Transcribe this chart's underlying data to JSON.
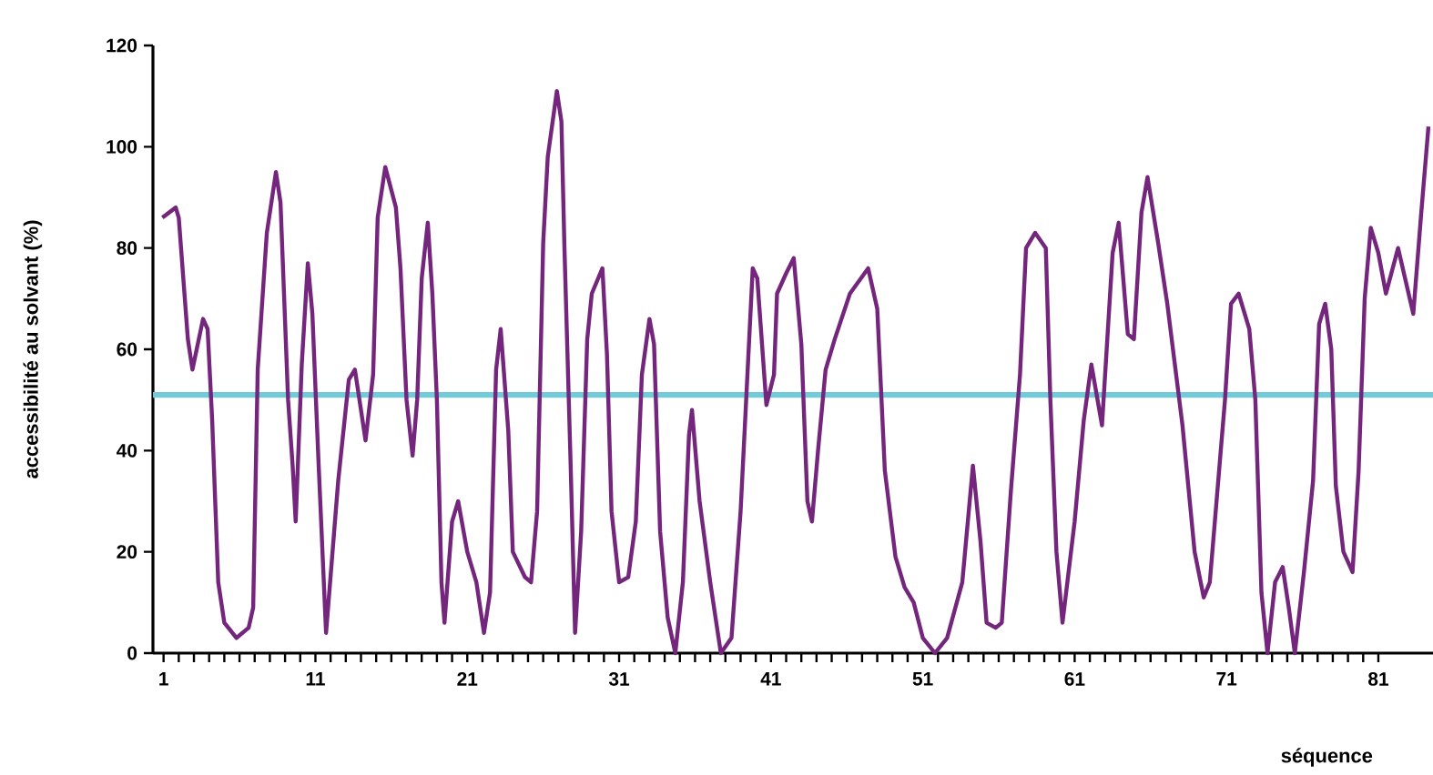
{
  "chart_data": {
    "type": "line",
    "xlabel": "séquence",
    "ylabel": "accessibilité au solvant (%)",
    "xlim": [
      0.3,
      84.6
    ],
    "xticks": [
      1,
      11,
      21,
      31,
      41,
      51,
      61,
      71,
      81
    ],
    "ylim": [
      0,
      120
    ],
    "yticks": [
      0,
      20,
      40,
      60,
      80,
      100,
      120
    ],
    "grid": false,
    "marker": "none",
    "line_style": "solid",
    "ref_lines": [
      {
        "axis": "y",
        "value": 51,
        "color": "#72cbdb"
      }
    ],
    "series": [
      {
        "color": "#74267c",
        "x": [
          0.92,
          1.8,
          2.0,
          2.6,
          2.9,
          3.6,
          3.9,
          4.2,
          4.6,
          5.0,
          5.8,
          6.6,
          6.9,
          7.2,
          7.8,
          8.4,
          8.7,
          9.2,
          9.5,
          9.7,
          10.1,
          10.5,
          10.8,
          11.2,
          11.7,
          12.5,
          13.2,
          13.6,
          14.3,
          14.8,
          15.1,
          15.6,
          16.3,
          16.6,
          17.0,
          17.4,
          17.7,
          18.0,
          18.4,
          18.7,
          19.0,
          19.3,
          19.5,
          20.0,
          20.4,
          21.0,
          21.6,
          22.1,
          22.5,
          22.9,
          23.2,
          23.7,
          24.0,
          24.8,
          25.2,
          25.6,
          26.0,
          26.3,
          26.9,
          27.2,
          27.4,
          27.8,
          28.1,
          28.5,
          28.9,
          29.2,
          29.9,
          30.2,
          30.5,
          31.0,
          31.6,
          32.1,
          32.5,
          33.0,
          33.3,
          33.7,
          34.2,
          34.7,
          35.2,
          35.6,
          35.8,
          36.3,
          37.0,
          37.7,
          38.4,
          39.0,
          39.4,
          39.8,
          40.1,
          40.7,
          41.2,
          41.4,
          42.0,
          42.5,
          43.0,
          43.4,
          43.7,
          44.1,
          44.6,
          45.2,
          46.2,
          47.4,
          48.0,
          48.5,
          49.2,
          49.8,
          50.4,
          51.0,
          51.8,
          52.6,
          53.6,
          54.3,
          54.8,
          55.2,
          55.8,
          56.2,
          56.8,
          57.4,
          57.8,
          58.4,
          59.1,
          59.4,
          59.8,
          60.2,
          61.0,
          61.6,
          62.1,
          62.8,
          63.5,
          63.9,
          64.5,
          64.9,
          65.4,
          65.8,
          66.5,
          67.1,
          68.1,
          68.9,
          69.5,
          69.9,
          70.9,
          71.3,
          71.8,
          72.5,
          72.9,
          73.3,
          73.7,
          74.2,
          74.7,
          75.1,
          75.5,
          76.1,
          76.7,
          77.1,
          77.5,
          77.9,
          78.2,
          78.7,
          79.3,
          79.7,
          80.1,
          80.5,
          81.0,
          81.5,
          82.3,
          83.3,
          83.8,
          84.3
        ],
        "values": [
          86,
          88,
          86,
          62,
          56,
          66,
          64,
          46,
          14,
          6,
          3,
          5,
          9,
          56,
          83,
          95,
          89,
          50,
          37,
          26,
          57,
          77,
          67,
          38,
          4,
          34,
          54,
          56,
          42,
          55,
          86,
          96,
          88,
          76,
          50,
          39,
          50,
          74,
          85,
          71,
          50,
          14,
          6,
          26,
          30,
          20,
          14,
          4,
          12,
          56,
          64,
          44,
          20,
          15,
          14,
          28,
          81,
          98,
          111,
          105,
          80,
          38,
          4,
          24,
          62,
          71,
          76,
          59,
          28,
          14,
          15,
          26,
          55,
          66,
          61,
          24,
          7,
          0,
          14,
          43,
          48,
          30,
          14,
          0,
          3,
          28,
          52,
          76,
          74,
          49,
          55,
          71,
          75,
          78,
          61,
          30,
          26,
          40,
          56,
          62,
          71,
          76,
          68,
          36,
          19,
          13,
          10,
          3,
          0,
          3,
          14,
          37,
          22,
          6,
          5,
          6,
          32,
          55,
          80,
          83,
          80,
          50,
          20,
          6,
          26,
          46,
          57,
          45,
          79,
          85,
          63,
          62,
          87,
          94,
          81,
          69,
          45,
          20,
          11,
          14,
          50,
          69,
          71,
          64,
          50,
          12,
          0,
          14,
          17,
          9,
          0,
          16,
          34,
          65,
          69,
          60,
          33,
          20,
          16,
          36,
          70,
          84,
          79,
          71,
          80,
          67,
          86,
          104
        ]
      }
    ]
  }
}
